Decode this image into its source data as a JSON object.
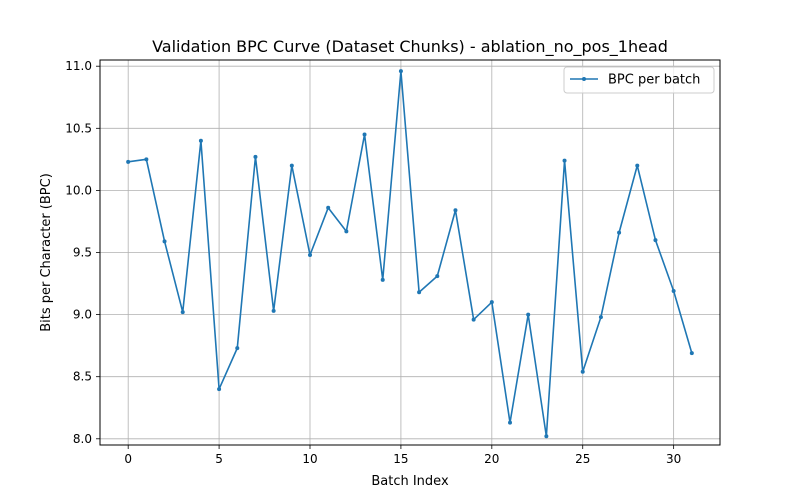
{
  "chart_data": {
    "type": "line",
    "title": "Validation BPC Curve (Dataset Chunks) - ablation_no_pos_1head",
    "xlabel": "Batch Index",
    "ylabel": "Bits per Character (BPC)",
    "xlim": [
      -1.55,
      32.55
    ],
    "ylim": [
      7.95,
      11.05
    ],
    "xticks": [
      0,
      5,
      10,
      15,
      20,
      25,
      30
    ],
    "yticks": [
      8.0,
      8.5,
      9.0,
      9.5,
      10.0,
      10.5,
      11.0
    ],
    "ytick_labels": [
      "8.0",
      "8.5",
      "9.0",
      "9.5",
      "10.0",
      "10.5",
      "11.0"
    ],
    "grid": true,
    "legend_position": "top-right",
    "series": [
      {
        "name": "BPC per batch",
        "color": "#1f77b4",
        "x": [
          0,
          1,
          2,
          3,
          4,
          5,
          6,
          7,
          8,
          9,
          10,
          11,
          12,
          13,
          14,
          15,
          16,
          17,
          18,
          19,
          20,
          21,
          22,
          23,
          24,
          25,
          26,
          27,
          28,
          29,
          30,
          31
        ],
        "values": [
          10.23,
          10.25,
          9.59,
          9.02,
          10.4,
          8.4,
          8.73,
          10.27,
          9.03,
          10.2,
          9.48,
          9.86,
          9.67,
          10.45,
          9.28,
          10.96,
          9.18,
          9.31,
          9.84,
          8.96,
          9.1,
          8.13,
          9.0,
          8.02,
          10.24,
          8.54,
          8.98,
          9.66,
          10.2,
          9.6,
          9.19,
          8.69
        ]
      }
    ]
  }
}
